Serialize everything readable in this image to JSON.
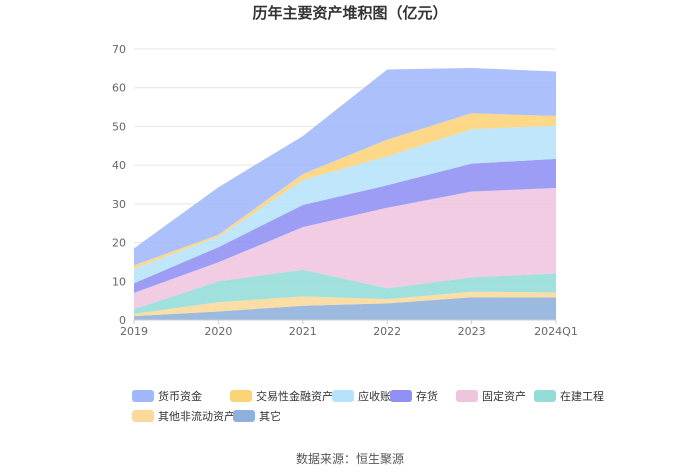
{
  "chart_data": {
    "type": "area",
    "title": "历年主要资产堆积图（亿元）",
    "categories": [
      "2019",
      "2020",
      "2021",
      "2022",
      "2023",
      "2024Q1"
    ],
    "ylim": [
      0,
      70
    ],
    "yticks": [
      "0",
      "10",
      "20",
      "30",
      "40",
      "50",
      "60",
      "70"
    ],
    "grid": true,
    "legend_position": "bottom",
    "series": [
      {
        "name": "其它",
        "color": "#8eb0dc",
        "values": [
          1.0,
          2.2,
          3.7,
          4.3,
          5.9,
          5.8
        ]
      },
      {
        "name": "其他非流动资产",
        "color": "#fbd99a",
        "values": [
          0.6,
          2.4,
          2.4,
          1.1,
          1.4,
          1.3
        ]
      },
      {
        "name": "在建工程",
        "color": "#93dcd8",
        "values": [
          1.2,
          5.4,
          6.9,
          2.8,
          3.7,
          4.9
        ]
      },
      {
        "name": "固定资产",
        "color": "#efc5de",
        "values": [
          4.2,
          4.9,
          11.0,
          20.8,
          22.2,
          22.1
        ]
      },
      {
        "name": "存货",
        "color": "#8f8ff4",
        "values": [
          2.5,
          3.9,
          5.7,
          5.8,
          7.2,
          7.5
        ]
      },
      {
        "name": "应收账款",
        "color": "#b6e3fb",
        "values": [
          3.8,
          2.7,
          6.5,
          7.5,
          8.9,
          8.6
        ]
      },
      {
        "name": "交易性金融资产",
        "color": "#fdd378",
        "values": [
          0.8,
          0.5,
          1.5,
          4.3,
          4.1,
          2.5
        ]
      },
      {
        "name": "货币资金",
        "color": "#a1b7fb",
        "values": [
          4.4,
          12.3,
          9.8,
          18.1,
          11.7,
          11.5
        ]
      }
    ]
  },
  "source": "数据来源：恒生聚源"
}
